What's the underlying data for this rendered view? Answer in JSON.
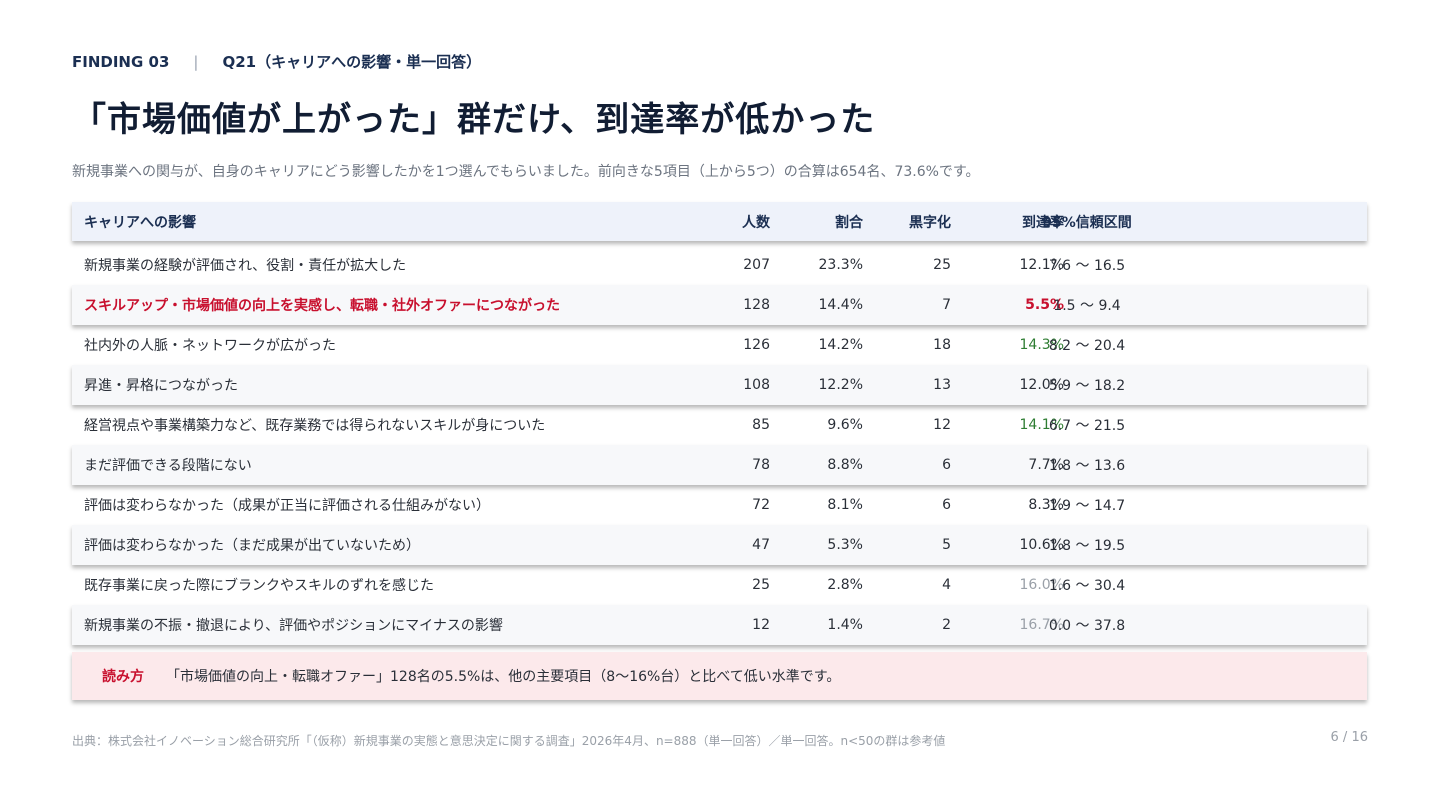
{
  "header": {
    "finding": "FINDING 03",
    "separator": "|",
    "question": "Q21（キャリアへの影響・単一回答）"
  },
  "title": "「市場価値が上がった」群だけ、到達率が低かった",
  "subtitle": "新規事業への関与が、自身のキャリアにどう影響したかを1つ選んでもらいました。前向きな5項目（上から5つ）の合算は654名、73.6%です。",
  "table": {
    "columns": [
      "キャリアへの影響",
      "人数",
      "割合",
      "黒字化",
      "到達率",
      "95%信頼区間"
    ],
    "rows": [
      {
        "label": "新規事業の経験が評価され、役割・責任が拡大した",
        "count": "207",
        "share": "23.3%",
        "profitable": "25",
        "rate": "12.1%",
        "ci": "7.6 〜 16.5"
      },
      {
        "label": "スキルアップ・市場価値の向上を実感し、転職・社外オファーにつながった",
        "count": "128",
        "share": "14.4%",
        "profitable": "7",
        "rate": "5.5%",
        "ci": "1.5 〜 9.4"
      },
      {
        "label": "社内外の人脈・ネットワークが広がった",
        "count": "126",
        "share": "14.2%",
        "profitable": "18",
        "rate": "14.3%",
        "ci": "8.2 〜 20.4"
      },
      {
        "label": "昇進・昇格につながった",
        "count": "108",
        "share": "12.2%",
        "profitable": "13",
        "rate": "12.0%",
        "ci": "5.9 〜 18.2"
      },
      {
        "label": "経営視点や事業構築力など、既存業務では得られないスキルが身についた",
        "count": "85",
        "share": "9.6%",
        "profitable": "12",
        "rate": "14.1%",
        "ci": "6.7 〜 21.5"
      },
      {
        "label": "まだ評価できる段階にない",
        "count": "78",
        "share": "8.8%",
        "profitable": "6",
        "rate": "7.7%",
        "ci": "1.8 〜 13.6"
      },
      {
        "label": "評価は変わらなかった（成果が正当に評価される仕組みがない）",
        "count": "72",
        "share": "8.1%",
        "profitable": "6",
        "rate": "8.3%",
        "ci": "1.9 〜 14.7"
      },
      {
        "label": "評価は変わらなかった（まだ成果が出ていないため）",
        "count": "47",
        "share": "5.3%",
        "profitable": "5",
        "rate": "10.6%",
        "ci": "1.8 〜 19.5"
      },
      {
        "label": "既存事業に戻った際にブランクやスキルのずれを感じた",
        "count": "25",
        "share": "2.8%",
        "profitable": "4",
        "rate": "16.0%",
        "ci": "1.6 〜 30.4"
      },
      {
        "label": "新規事業の不振・撤退により、評価やポジションにマイナスの影響",
        "count": "12",
        "share": "1.4%",
        "profitable": "2",
        "rate": "16.7%",
        "ci": "0.0 〜 37.8"
      }
    ]
  },
  "note": {
    "label": "読み方",
    "text": "「市場価値の向上・転職オファー」128名の5.5%は、他の主要項目（8〜16%台）と比べて低い水準です。"
  },
  "footer": "出典：株式会社イノベーション総合研究所「（仮称）新規事業の実態と意思決定に関する調査」2026年4月、n=888（単一回答）／単一回答。n<50の群は参考値",
  "page": "6 / 16",
  "colors": {
    "accent": "#c8102e",
    "green": "#2e7d32",
    "navy": "#1b2f52",
    "muted": "#9aa0a8"
  }
}
